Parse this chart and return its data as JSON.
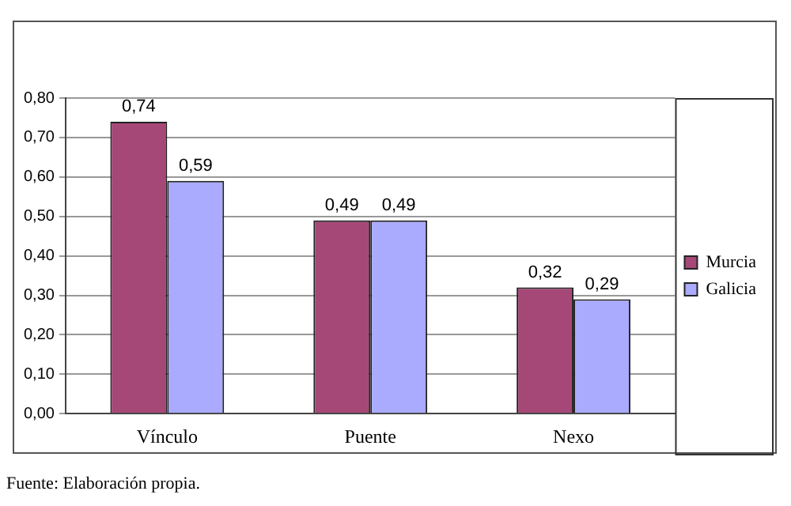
{
  "chart_data": {
    "type": "bar",
    "categories": [
      "Vínculo",
      "Puente",
      "Nexo"
    ],
    "series": [
      {
        "name": "Murcia",
        "color": "#a54877",
        "values": [
          0.74,
          0.49,
          0.32
        ],
        "value_labels": [
          "0,74",
          "0,49",
          "0,32"
        ]
      },
      {
        "name": "Galicia",
        "color": "#aaaaff",
        "values": [
          0.59,
          0.49,
          0.29
        ],
        "value_labels": [
          "0,59",
          "0,49",
          "0,29"
        ]
      }
    ],
    "ylim": [
      0,
      0.8
    ],
    "yticks": [
      {
        "value": 0,
        "label": "0,00"
      },
      {
        "value": 0.1,
        "label": "0,10"
      },
      {
        "value": 0.2,
        "label": "0,20"
      },
      {
        "value": 0.3,
        "label": "0,30"
      },
      {
        "value": 0.4,
        "label": "0,40"
      },
      {
        "value": 0.5,
        "label": "0,50"
      },
      {
        "value": 0.6,
        "label": "0,60"
      },
      {
        "value": 0.7,
        "label": "0,70"
      },
      {
        "value": 0.8,
        "label": "0,80"
      }
    ],
    "grid": "y",
    "legend": "right",
    "annotations": [
      "Fuente: Elaboración propia."
    ]
  }
}
